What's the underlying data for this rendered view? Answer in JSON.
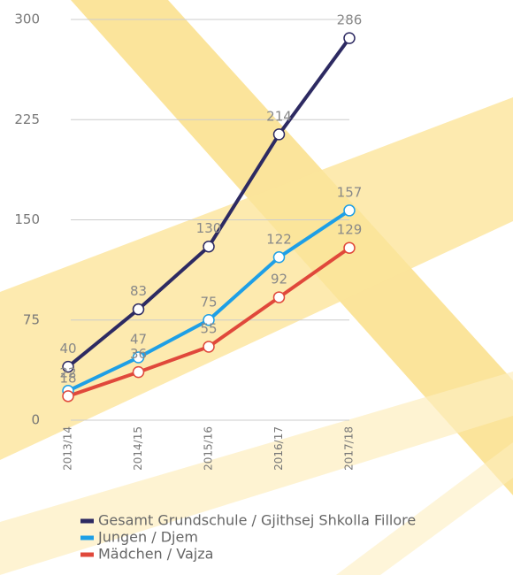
{
  "chart_data": {
    "type": "line",
    "categories": [
      "2013/14",
      "2014/15",
      "2015/16",
      "2016/17",
      "2017/18"
    ],
    "series": [
      {
        "name": "Gesamt Grundschule / Gjithsej Shkolla Fillore",
        "color": "#2d2a62",
        "values": [
          40,
          83,
          130,
          214,
          286
        ]
      },
      {
        "name": "Jungen / Djem",
        "color": "#1e9fe6",
        "values": [
          22,
          47,
          75,
          122,
          157
        ]
      },
      {
        "name": "Mädchen / Vajza",
        "color": "#e0483b",
        "values": [
          18,
          36,
          55,
          92,
          129
        ]
      }
    ],
    "ylim": [
      0,
      300
    ],
    "yticks": [
      0,
      75,
      150,
      225,
      300
    ],
    "grid": true
  }
}
